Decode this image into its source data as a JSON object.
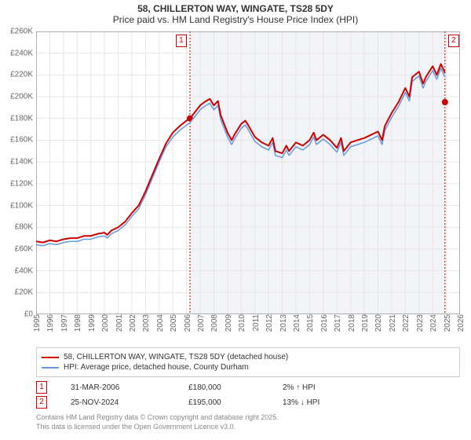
{
  "title": "58, CHILLERTON WAY, WINGATE, TS28 5DY",
  "subtitle": "Price paid vs. HM Land Registry's House Price Index (HPI)",
  "chart": {
    "type": "line",
    "background_color": "#ffffff",
    "grid_color": "#e6e6e6",
    "axis_color": "#666666",
    "shaded_region_color": "#f2f4f7",
    "shaded_region_x": [
      2006.25,
      2024.9
    ],
    "xlim": [
      1995,
      2026
    ],
    "ylim": [
      0,
      260000
    ],
    "ytick_step": 20000,
    "ytick_labels": [
      "£0",
      "£20K",
      "£40K",
      "£60K",
      "£80K",
      "£100K",
      "£120K",
      "£140K",
      "£160K",
      "£180K",
      "£200K",
      "£220K",
      "£240K",
      "£260K"
    ],
    "xtick_step": 1,
    "xtick_labels": [
      "1995",
      "1996",
      "1997",
      "1998",
      "1999",
      "2000",
      "2001",
      "2002",
      "2003",
      "2004",
      "2005",
      "2006",
      "2007",
      "2008",
      "2009",
      "2010",
      "2011",
      "2012",
      "2013",
      "2014",
      "2015",
      "2016",
      "2017",
      "2018",
      "2019",
      "2020",
      "2021",
      "2022",
      "2023",
      "2024",
      "2025",
      "2026"
    ],
    "series": [
      {
        "name": "58, CHILLERTON WAY, WINGATE, TS28 5DY (detached house)",
        "color": "#cc0000",
        "line_width": 2,
        "points": [
          [
            1995.0,
            67000
          ],
          [
            1995.5,
            66000
          ],
          [
            1996.0,
            68000
          ],
          [
            1996.5,
            67000
          ],
          [
            1997.0,
            69000
          ],
          [
            1997.5,
            70000
          ],
          [
            1998.0,
            70000
          ],
          [
            1998.5,
            72000
          ],
          [
            1999.0,
            72000
          ],
          [
            1999.5,
            74000
          ],
          [
            2000.0,
            75000
          ],
          [
            2000.2,
            73000
          ],
          [
            2000.5,
            77000
          ],
          [
            2001.0,
            80000
          ],
          [
            2001.5,
            85000
          ],
          [
            2002.0,
            93000
          ],
          [
            2002.5,
            100000
          ],
          [
            2003.0,
            113000
          ],
          [
            2003.5,
            128000
          ],
          [
            2004.0,
            143000
          ],
          [
            2004.5,
            157000
          ],
          [
            2005.0,
            167000
          ],
          [
            2005.5,
            173000
          ],
          [
            2006.0,
            178000
          ],
          [
            2006.25,
            180000
          ],
          [
            2006.5,
            184000
          ],
          [
            2007.0,
            192000
          ],
          [
            2007.3,
            195000
          ],
          [
            2007.7,
            198000
          ],
          [
            2008.0,
            192000
          ],
          [
            2008.3,
            196000
          ],
          [
            2008.5,
            183000
          ],
          [
            2009.0,
            167000
          ],
          [
            2009.3,
            160000
          ],
          [
            2009.5,
            165000
          ],
          [
            2010.0,
            175000
          ],
          [
            2010.3,
            178000
          ],
          [
            2010.5,
            174000
          ],
          [
            2011.0,
            163000
          ],
          [
            2011.5,
            158000
          ],
          [
            2012.0,
            155000
          ],
          [
            2012.3,
            162000
          ],
          [
            2012.5,
            150000
          ],
          [
            2013.0,
            148000
          ],
          [
            2013.3,
            155000
          ],
          [
            2013.5,
            150000
          ],
          [
            2014.0,
            158000
          ],
          [
            2014.5,
            155000
          ],
          [
            2015.0,
            160000
          ],
          [
            2015.3,
            167000
          ],
          [
            2015.5,
            160000
          ],
          [
            2016.0,
            165000
          ],
          [
            2016.5,
            160000
          ],
          [
            2017.0,
            153000
          ],
          [
            2017.3,
            162000
          ],
          [
            2017.5,
            150000
          ],
          [
            2018.0,
            158000
          ],
          [
            2018.5,
            160000
          ],
          [
            2019.0,
            162000
          ],
          [
            2019.5,
            165000
          ],
          [
            2020.0,
            168000
          ],
          [
            2020.3,
            160000
          ],
          [
            2020.5,
            173000
          ],
          [
            2021.0,
            185000
          ],
          [
            2021.5,
            195000
          ],
          [
            2022.0,
            208000
          ],
          [
            2022.3,
            200000
          ],
          [
            2022.5,
            218000
          ],
          [
            2023.0,
            223000
          ],
          [
            2023.3,
            212000
          ],
          [
            2023.5,
            218000
          ],
          [
            2024.0,
            228000
          ],
          [
            2024.3,
            220000
          ],
          [
            2024.6,
            230000
          ],
          [
            2024.9,
            222000
          ]
        ]
      },
      {
        "name": "HPI: Average price, detached house, County Durham",
        "color": "#6699dd",
        "line_width": 1.5,
        "points": [
          [
            1995.0,
            64000
          ],
          [
            1995.5,
            63000
          ],
          [
            1996.0,
            65000
          ],
          [
            1996.5,
            64000
          ],
          [
            1997.0,
            66000
          ],
          [
            1997.5,
            67000
          ],
          [
            1998.0,
            67000
          ],
          [
            1998.5,
            69000
          ],
          [
            1999.0,
            69000
          ],
          [
            1999.5,
            71000
          ],
          [
            2000.0,
            72000
          ],
          [
            2000.2,
            70000
          ],
          [
            2000.5,
            74000
          ],
          [
            2001.0,
            77000
          ],
          [
            2001.5,
            82000
          ],
          [
            2002.0,
            90000
          ],
          [
            2002.5,
            97000
          ],
          [
            2003.0,
            110000
          ],
          [
            2003.5,
            125000
          ],
          [
            2004.0,
            140000
          ],
          [
            2004.5,
            154000
          ],
          [
            2005.0,
            163000
          ],
          [
            2005.5,
            169000
          ],
          [
            2006.0,
            174000
          ],
          [
            2006.25,
            176000
          ],
          [
            2006.5,
            180000
          ],
          [
            2007.0,
            188000
          ],
          [
            2007.3,
            191000
          ],
          [
            2007.7,
            194000
          ],
          [
            2008.0,
            188000
          ],
          [
            2008.3,
            192000
          ],
          [
            2008.5,
            179000
          ],
          [
            2009.0,
            163000
          ],
          [
            2009.3,
            156000
          ],
          [
            2009.5,
            161000
          ],
          [
            2010.0,
            171000
          ],
          [
            2010.3,
            174000
          ],
          [
            2010.5,
            170000
          ],
          [
            2011.0,
            159000
          ],
          [
            2011.5,
            154000
          ],
          [
            2012.0,
            151000
          ],
          [
            2012.3,
            158000
          ],
          [
            2012.5,
            146000
          ],
          [
            2013.0,
            144000
          ],
          [
            2013.3,
            151000
          ],
          [
            2013.5,
            146000
          ],
          [
            2014.0,
            154000
          ],
          [
            2014.5,
            151000
          ],
          [
            2015.0,
            156000
          ],
          [
            2015.3,
            163000
          ],
          [
            2015.5,
            156000
          ],
          [
            2016.0,
            161000
          ],
          [
            2016.5,
            156000
          ],
          [
            2017.0,
            149000
          ],
          [
            2017.3,
            158000
          ],
          [
            2017.5,
            146000
          ],
          [
            2018.0,
            154000
          ],
          [
            2018.5,
            156000
          ],
          [
            2019.0,
            158000
          ],
          [
            2019.5,
            161000
          ],
          [
            2020.0,
            164000
          ],
          [
            2020.3,
            156000
          ],
          [
            2020.5,
            169000
          ],
          [
            2021.0,
            181000
          ],
          [
            2021.5,
            191000
          ],
          [
            2022.0,
            204000
          ],
          [
            2022.3,
            196000
          ],
          [
            2022.5,
            214000
          ],
          [
            2023.0,
            219000
          ],
          [
            2023.3,
            208000
          ],
          [
            2023.5,
            214000
          ],
          [
            2024.0,
            224000
          ],
          [
            2024.3,
            216000
          ],
          [
            2024.6,
            226000
          ],
          [
            2024.9,
            218000
          ]
        ]
      }
    ],
    "markers": [
      {
        "id": "1",
        "x": 2006.25,
        "y": 180000,
        "dot_color": "#cc0000"
      },
      {
        "id": "2",
        "x": 2024.9,
        "y": 195000,
        "dot_color": "#cc0000"
      }
    ],
    "marker_line_color": "#cc0000",
    "marker_line_dash": "2,2"
  },
  "legend": {
    "items": [
      {
        "color": "#cc0000",
        "label": "58, CHILLERTON WAY, WINGATE, TS28 5DY (detached house)"
      },
      {
        "color": "#6699dd",
        "label": "HPI: Average price, detached house, County Durham"
      }
    ]
  },
  "events": [
    {
      "id": "1",
      "date": "31-MAR-2006",
      "price": "£180,000",
      "diff": "2% ↑ HPI"
    },
    {
      "id": "2",
      "date": "25-NOV-2024",
      "price": "£195,000",
      "diff": "13% ↓ HPI"
    }
  ],
  "attribution": {
    "line1": "Contains HM Land Registry data © Crown copyright and database right 2025.",
    "line2": "This data is licensed under the Open Government Licence v3.0."
  }
}
